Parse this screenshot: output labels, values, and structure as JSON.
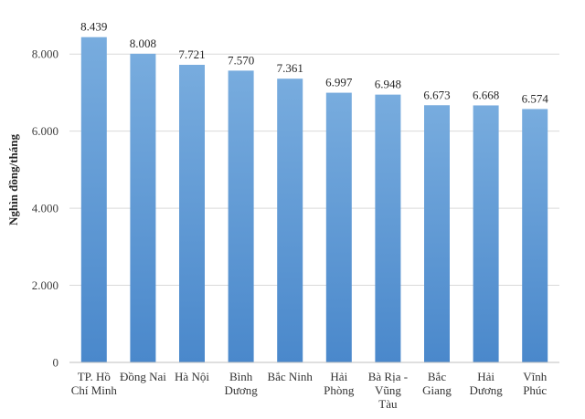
{
  "chart_data": {
    "type": "bar",
    "title": "",
    "xlabel": "",
    "ylabel": "Nghìn đồng/tháng",
    "ylim": [
      0,
      9000
    ],
    "yticks": [
      0,
      2000,
      4000,
      6000,
      8000
    ],
    "ytick_labels": [
      "0",
      "2.000",
      "4.000",
      "6.000",
      "8.000"
    ],
    "grid": true,
    "legend": "none",
    "bar_color": "#5b9bd5",
    "categories": [
      [
        "TP. Hồ",
        "Chí Minh"
      ],
      [
        "Đồng Nai"
      ],
      [
        "Hà Nội"
      ],
      [
        "Bình",
        "Dương"
      ],
      [
        "Bắc Ninh"
      ],
      [
        "Hải",
        "Phòng"
      ],
      [
        "Bà Rịa -",
        "Vũng",
        "Tàu"
      ],
      [
        "Bắc",
        "Giang"
      ],
      [
        "Hải",
        "Dương"
      ],
      [
        "Vĩnh",
        "Phúc"
      ]
    ],
    "values": [
      8439,
      8008,
      7721,
      7570,
      7361,
      6997,
      6948,
      6673,
      6668,
      6574
    ],
    "value_labels": [
      "8.439",
      "8.008",
      "7.721",
      "7.570",
      "7.361",
      "6.997",
      "6.948",
      "6.673",
      "6.668",
      "6.574"
    ]
  }
}
